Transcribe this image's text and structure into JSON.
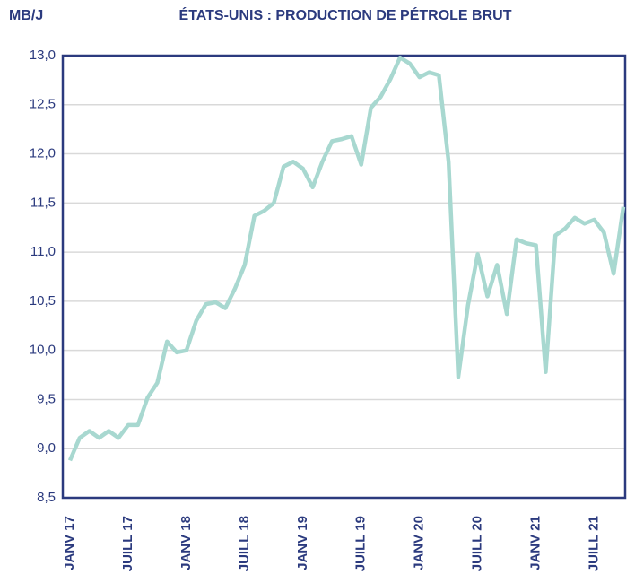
{
  "chart_data": {
    "type": "line",
    "title": "ÉTATS-UNIS : PRODUCTION DE PÉTROLE BRUT",
    "y_label": "MB/J",
    "categories": [
      "JANV 17",
      null,
      null,
      null,
      null,
      null,
      "JUILL 17",
      null,
      null,
      null,
      null,
      null,
      "JANV 18",
      null,
      null,
      null,
      null,
      null,
      "JUILL 18",
      null,
      null,
      null,
      null,
      null,
      "JANV 19",
      null,
      null,
      null,
      null,
      null,
      "JUILL 19",
      null,
      null,
      null,
      null,
      null,
      "JANV 20",
      null,
      null,
      null,
      null,
      null,
      "JUILL 20",
      null,
      null,
      null,
      null,
      null,
      "JANV 21",
      null,
      null,
      null,
      null,
      null,
      "JUILL 21",
      null,
      null,
      null
    ],
    "series": [
      {
        "name": "Production",
        "color": "#a8d8d0",
        "values": [
          8.88,
          9.11,
          9.18,
          9.11,
          9.18,
          9.11,
          9.24,
          9.24,
          9.52,
          9.67,
          10.09,
          9.98,
          10.0,
          10.3,
          10.47,
          10.49,
          10.43,
          10.63,
          10.87,
          11.37,
          11.42,
          11.5,
          11.87,
          11.92,
          11.85,
          11.66,
          11.92,
          12.13,
          12.15,
          12.18,
          11.89,
          12.47,
          12.58,
          12.76,
          12.98,
          12.92,
          12.78,
          12.83,
          12.8,
          11.92,
          9.73,
          10.46,
          10.98,
          10.55,
          10.87,
          10.37,
          11.13,
          11.09,
          11.07,
          9.78,
          11.17,
          11.24,
          11.35,
          11.29,
          11.33,
          11.2,
          10.78,
          11.46
        ]
      }
    ],
    "ylim": [
      8.5,
      13.0
    ],
    "yticks": [
      {
        "value": 8.5,
        "label": "8,5"
      },
      {
        "value": 9.0,
        "label": "9,0"
      },
      {
        "value": 9.5,
        "label": "9,5"
      },
      {
        "value": 10.0,
        "label": "10,0"
      },
      {
        "value": 10.5,
        "label": "10,5"
      },
      {
        "value": 11.0,
        "label": "11,0"
      },
      {
        "value": 11.5,
        "label": "11,5"
      },
      {
        "value": 12.0,
        "label": "12,0"
      },
      {
        "value": 12.5,
        "label": "12,5"
      },
      {
        "value": 13.0,
        "label": "13,0"
      }
    ],
    "grid": true
  }
}
